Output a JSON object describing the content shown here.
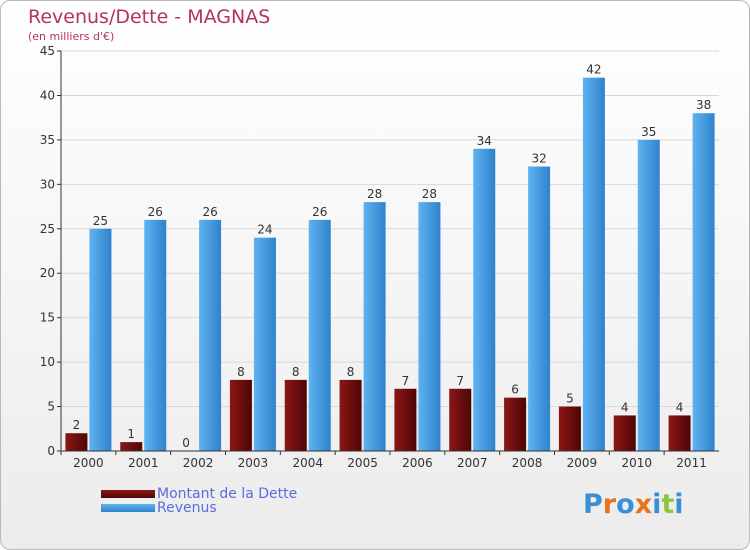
{
  "title": "Revenus/Dette - MAGNAS",
  "subtitle": "(en milliers d'€)",
  "logo": {
    "text": "Proxiti",
    "letter_colors": [
      "#3a8fd6",
      "#e8731d",
      "#3a8fd6",
      "#e8731d",
      "#3a8fd6",
      "#8cc43f",
      "#3a8fd6"
    ]
  },
  "colors": {
    "dette": "#7a1010",
    "revenus": "#4aa0e6",
    "axis": "#333333",
    "grid": "#d8d8d8",
    "title": "#b5306a",
    "legend_text": "#5b6be0"
  },
  "chart_data": {
    "type": "bar",
    "categories": [
      "2000",
      "2001",
      "2002",
      "2003",
      "2004",
      "2005",
      "2006",
      "2007",
      "2008",
      "2009",
      "2010",
      "2011"
    ],
    "series": [
      {
        "name": "Montant de la Dette",
        "values": [
          2,
          1,
          0,
          8,
          8,
          8,
          7,
          7,
          6,
          5,
          4,
          4
        ]
      },
      {
        "name": "Revenus",
        "values": [
          25,
          26,
          26,
          24,
          26,
          28,
          28,
          34,
          32,
          42,
          35,
          38
        ]
      }
    ],
    "ylim": [
      0,
      45
    ],
    "yticks": [
      0,
      5,
      10,
      15,
      20,
      25,
      30,
      35,
      40,
      45
    ],
    "grid": true,
    "legend_position": "bottom-left"
  }
}
